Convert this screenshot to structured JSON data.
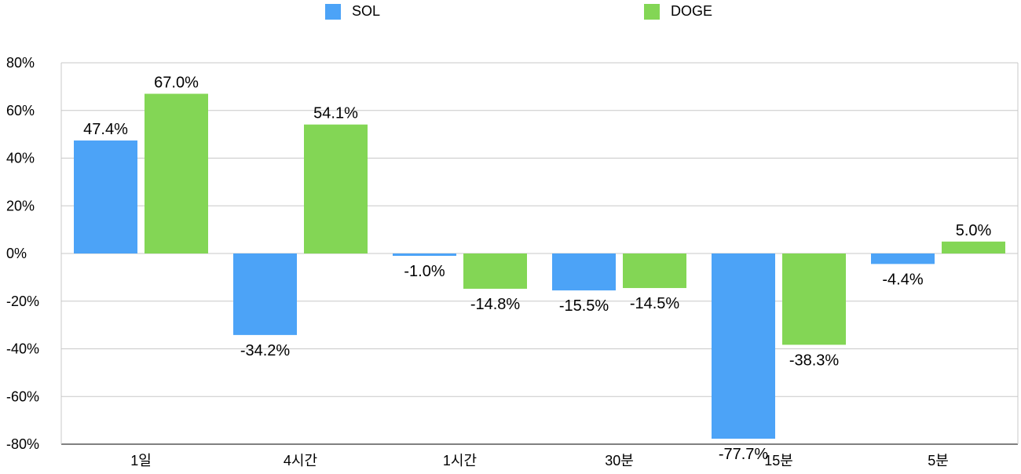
{
  "chart_data": {
    "type": "bar",
    "categories": [
      "1일",
      "4시간",
      "1시간",
      "30분",
      "15분",
      "5분"
    ],
    "series": [
      {
        "name": "SOL",
        "color": "#4ca3f7",
        "values": [
          47.4,
          -34.2,
          -1.0,
          -15.5,
          -77.7,
          -4.4
        ]
      },
      {
        "name": "DOGE",
        "color": "#83d655",
        "values": [
          67.0,
          54.1,
          -14.8,
          -14.5,
          -38.3,
          5.0
        ]
      }
    ],
    "data_labels": [
      [
        "47.4%",
        "-34.2%",
        "-1.0%",
        "-15.5%",
        "-77.7%",
        "-4.4%"
      ],
      [
        "67.0%",
        "54.1%",
        "-14.8%",
        "-14.5%",
        "-38.3%",
        "5.0%"
      ]
    ],
    "y_ticks": [
      80,
      60,
      40,
      20,
      0,
      -20,
      -40,
      -60,
      -80
    ],
    "y_tick_labels": [
      "80%",
      "60%",
      "40%",
      "20%",
      "0%",
      "-20%",
      "-40%",
      "-60%",
      "-80%"
    ],
    "ylim": [
      -80,
      80
    ],
    "grid": true,
    "legend_position": "top",
    "title": "",
    "xlabel": "",
    "ylabel": ""
  }
}
